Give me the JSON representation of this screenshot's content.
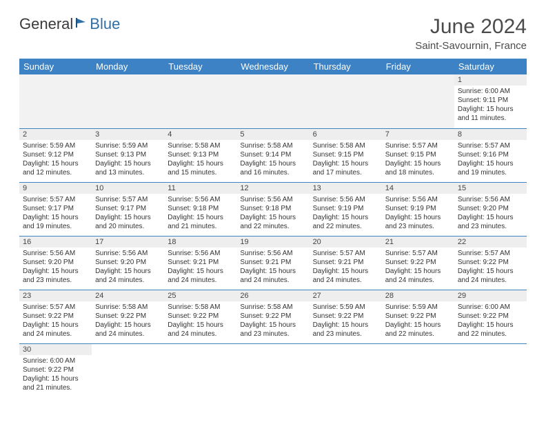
{
  "logo": {
    "part1": "General",
    "part2": "Blue"
  },
  "title": "June 2024",
  "location": "Saint-Savournin, France",
  "colors": {
    "header_bg": "#3d82c4",
    "header_text": "#ffffff",
    "daynum_bg": "#eeeeee",
    "border": "#3d82c4",
    "text": "#333333"
  },
  "weekdays": [
    "Sunday",
    "Monday",
    "Tuesday",
    "Wednesday",
    "Thursday",
    "Friday",
    "Saturday"
  ],
  "weeks": [
    [
      null,
      null,
      null,
      null,
      null,
      null,
      {
        "n": "1",
        "sr": "6:00 AM",
        "ss": "9:11 PM",
        "dl": "15 hours and 11 minutes."
      }
    ],
    [
      {
        "n": "2",
        "sr": "5:59 AM",
        "ss": "9:12 PM",
        "dl": "15 hours and 12 minutes."
      },
      {
        "n": "3",
        "sr": "5:59 AM",
        "ss": "9:13 PM",
        "dl": "15 hours and 13 minutes."
      },
      {
        "n": "4",
        "sr": "5:58 AM",
        "ss": "9:13 PM",
        "dl": "15 hours and 15 minutes."
      },
      {
        "n": "5",
        "sr": "5:58 AM",
        "ss": "9:14 PM",
        "dl": "15 hours and 16 minutes."
      },
      {
        "n": "6",
        "sr": "5:58 AM",
        "ss": "9:15 PM",
        "dl": "15 hours and 17 minutes."
      },
      {
        "n": "7",
        "sr": "5:57 AM",
        "ss": "9:15 PM",
        "dl": "15 hours and 18 minutes."
      },
      {
        "n": "8",
        "sr": "5:57 AM",
        "ss": "9:16 PM",
        "dl": "15 hours and 19 minutes."
      }
    ],
    [
      {
        "n": "9",
        "sr": "5:57 AM",
        "ss": "9:17 PM",
        "dl": "15 hours and 19 minutes."
      },
      {
        "n": "10",
        "sr": "5:57 AM",
        "ss": "9:17 PM",
        "dl": "15 hours and 20 minutes."
      },
      {
        "n": "11",
        "sr": "5:56 AM",
        "ss": "9:18 PM",
        "dl": "15 hours and 21 minutes."
      },
      {
        "n": "12",
        "sr": "5:56 AM",
        "ss": "9:18 PM",
        "dl": "15 hours and 22 minutes."
      },
      {
        "n": "13",
        "sr": "5:56 AM",
        "ss": "9:19 PM",
        "dl": "15 hours and 22 minutes."
      },
      {
        "n": "14",
        "sr": "5:56 AM",
        "ss": "9:19 PM",
        "dl": "15 hours and 23 minutes."
      },
      {
        "n": "15",
        "sr": "5:56 AM",
        "ss": "9:20 PM",
        "dl": "15 hours and 23 minutes."
      }
    ],
    [
      {
        "n": "16",
        "sr": "5:56 AM",
        "ss": "9:20 PM",
        "dl": "15 hours and 23 minutes."
      },
      {
        "n": "17",
        "sr": "5:56 AM",
        "ss": "9:20 PM",
        "dl": "15 hours and 24 minutes."
      },
      {
        "n": "18",
        "sr": "5:56 AM",
        "ss": "9:21 PM",
        "dl": "15 hours and 24 minutes."
      },
      {
        "n": "19",
        "sr": "5:56 AM",
        "ss": "9:21 PM",
        "dl": "15 hours and 24 minutes."
      },
      {
        "n": "20",
        "sr": "5:57 AM",
        "ss": "9:21 PM",
        "dl": "15 hours and 24 minutes."
      },
      {
        "n": "21",
        "sr": "5:57 AM",
        "ss": "9:22 PM",
        "dl": "15 hours and 24 minutes."
      },
      {
        "n": "22",
        "sr": "5:57 AM",
        "ss": "9:22 PM",
        "dl": "15 hours and 24 minutes."
      }
    ],
    [
      {
        "n": "23",
        "sr": "5:57 AM",
        "ss": "9:22 PM",
        "dl": "15 hours and 24 minutes."
      },
      {
        "n": "24",
        "sr": "5:58 AM",
        "ss": "9:22 PM",
        "dl": "15 hours and 24 minutes."
      },
      {
        "n": "25",
        "sr": "5:58 AM",
        "ss": "9:22 PM",
        "dl": "15 hours and 24 minutes."
      },
      {
        "n": "26",
        "sr": "5:58 AM",
        "ss": "9:22 PM",
        "dl": "15 hours and 23 minutes."
      },
      {
        "n": "27",
        "sr": "5:59 AM",
        "ss": "9:22 PM",
        "dl": "15 hours and 23 minutes."
      },
      {
        "n": "28",
        "sr": "5:59 AM",
        "ss": "9:22 PM",
        "dl": "15 hours and 22 minutes."
      },
      {
        "n": "29",
        "sr": "6:00 AM",
        "ss": "9:22 PM",
        "dl": "15 hours and 22 minutes."
      }
    ],
    [
      {
        "n": "30",
        "sr": "6:00 AM",
        "ss": "9:22 PM",
        "dl": "15 hours and 21 minutes."
      },
      null,
      null,
      null,
      null,
      null,
      null
    ]
  ],
  "labels": {
    "sunrise": "Sunrise:",
    "sunset": "Sunset:",
    "daylight": "Daylight:"
  }
}
